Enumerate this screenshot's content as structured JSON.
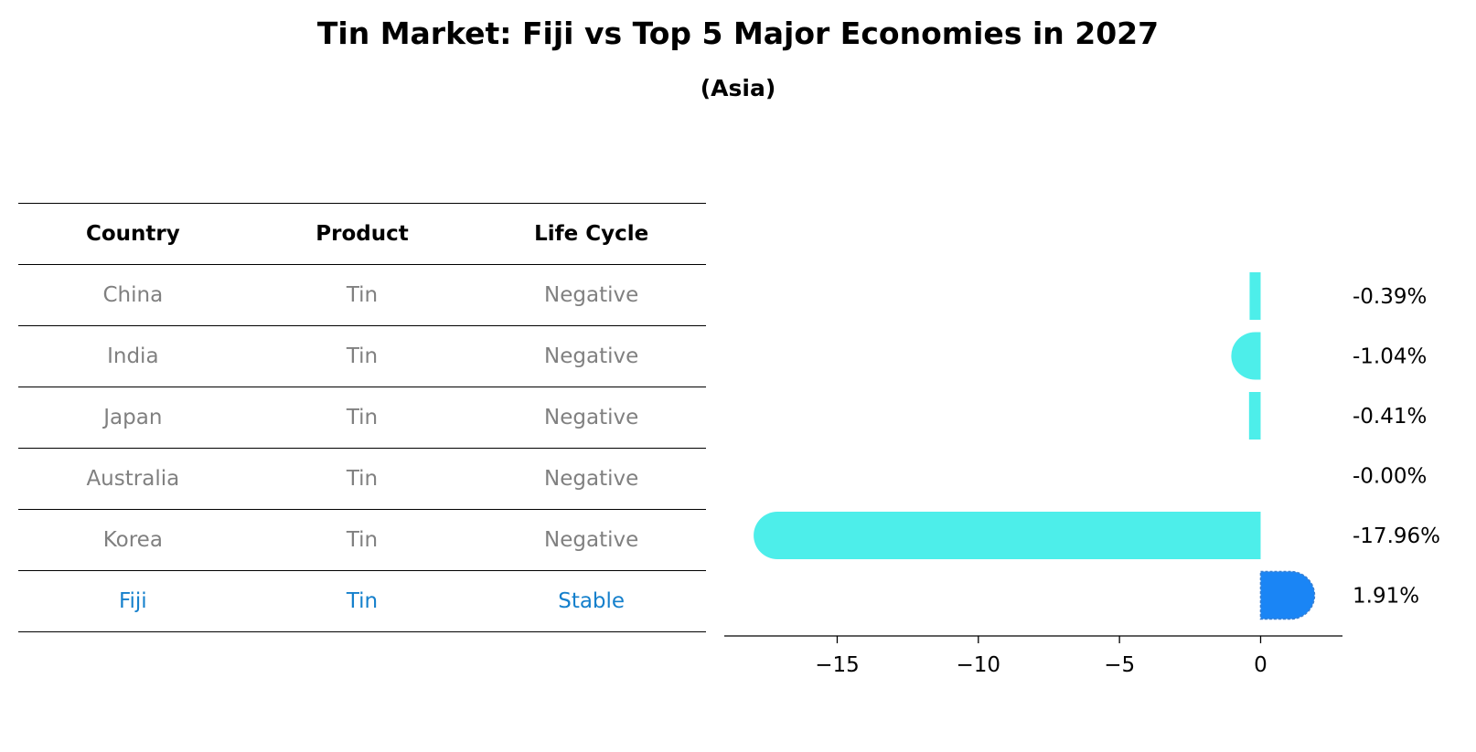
{
  "chart_data": {
    "type": "bar",
    "orientation": "horizontal",
    "title": "Tin Market: Fiji vs Top 5 Major Economies in 2027",
    "subtitle": "(Asia)",
    "categories": [
      "China",
      "India",
      "Japan",
      "Australia",
      "Korea",
      "Fiji"
    ],
    "values": [
      -0.39,
      -1.04,
      -0.41,
      -0.0,
      -17.96,
      1.91
    ],
    "value_labels": [
      "-0.39%",
      "-1.04%",
      "-0.41%",
      "-0.00%",
      "-17.96%",
      "1.91%"
    ],
    "xticks": [
      -15,
      -10,
      -5,
      0
    ],
    "xtick_labels": [
      "−15",
      "−10",
      "−5",
      "0"
    ],
    "xlim": [
      -19,
      2.9
    ],
    "grid": false,
    "colors": {
      "default": "#4deeea",
      "highlight": "#1a85f5"
    },
    "highlight": "Fiji"
  },
  "table": {
    "headers": [
      "Country",
      "Product",
      "Life Cycle"
    ],
    "rows": [
      [
        "China",
        "Tin",
        "Negative"
      ],
      [
        "India",
        "Tin",
        "Negative"
      ],
      [
        "Japan",
        "Tin",
        "Negative"
      ],
      [
        "Australia",
        "Tin",
        "Negative"
      ],
      [
        "Korea",
        "Tin",
        "Negative"
      ],
      [
        "Fiji",
        "Tin",
        "Stable"
      ]
    ],
    "highlight_row": 5
  }
}
